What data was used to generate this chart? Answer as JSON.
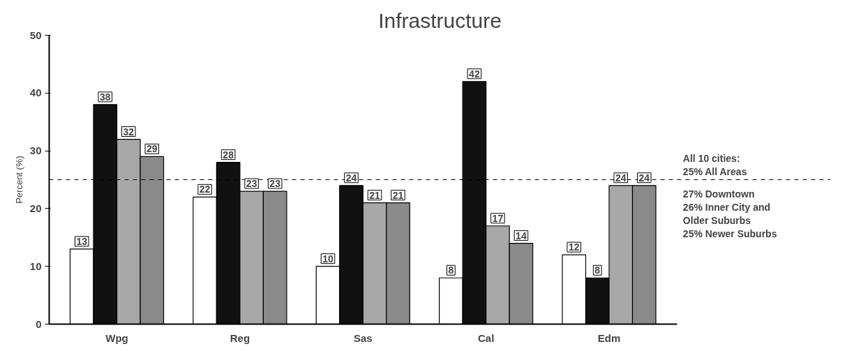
{
  "chart_data": {
    "type": "bar",
    "title": "Infrastructure",
    "ylabel": "Percent (%)",
    "categories": [
      "Wpg",
      "Reg",
      "Sas",
      "Cal",
      "Edm"
    ],
    "series": [
      {
        "color": "#ffffff",
        "values": [
          13,
          22,
          10,
          8,
          12
        ]
      },
      {
        "color": "#111111",
        "values": [
          38,
          28,
          24,
          42,
          8
        ]
      },
      {
        "color": "#a8a8a8",
        "values": [
          32,
          23,
          21,
          17,
          24
        ]
      },
      {
        "color": "#8a8a8a",
        "values": [
          29,
          23,
          21,
          14,
          24
        ]
      }
    ],
    "ylim": [
      0,
      50
    ],
    "yticks": [
      0,
      10,
      20,
      30,
      40,
      50
    ],
    "grid": false,
    "data_labels": true,
    "ref_lines": [
      {
        "axis": "y",
        "value": 25,
        "label": "All 10 cities:\n25% All Areas",
        "line_style": "dashed",
        "color": "#000000"
      }
    ],
    "annotations": [
      "27% Downtown",
      "26% Inner City and\nOlder Suburbs",
      "25% Newer Suburbs"
    ]
  }
}
